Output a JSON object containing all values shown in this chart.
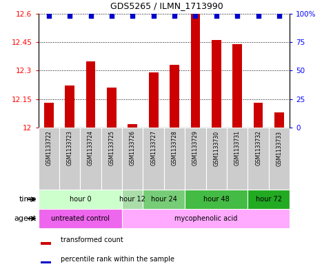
{
  "title": "GDS5265 / ILMN_1713990",
  "samples": [
    "GSM1133722",
    "GSM1133723",
    "GSM1133724",
    "GSM1133725",
    "GSM1133726",
    "GSM1133727",
    "GSM1133728",
    "GSM1133729",
    "GSM1133730",
    "GSM1133731",
    "GSM1133732",
    "GSM1133733"
  ],
  "transformed_counts": [
    12.13,
    12.22,
    12.35,
    12.21,
    12.02,
    12.29,
    12.33,
    12.6,
    12.46,
    12.44,
    12.13,
    12.08
  ],
  "ylim": [
    12.0,
    12.6
  ],
  "y_ticks": [
    12.0,
    12.15,
    12.3,
    12.45,
    12.6
  ],
  "y_tick_labels": [
    "12",
    "12.15",
    "12.3",
    "12.45",
    "12.6"
  ],
  "right_yticks": [
    0,
    25,
    50,
    75,
    100
  ],
  "right_ytick_labels": [
    "0",
    "25",
    "50",
    "75",
    "100%"
  ],
  "bar_color": "#cc0000",
  "dot_color": "#0000cc",
  "sample_bg_color": "#cccccc",
  "time_groups": [
    {
      "label": "hour 0",
      "start": 0,
      "end": 3,
      "color": "#ccffcc"
    },
    {
      "label": "hour 12",
      "start": 4,
      "end": 4,
      "color": "#aaddaa"
    },
    {
      "label": "hour 24",
      "start": 5,
      "end": 6,
      "color": "#77cc77"
    },
    {
      "label": "hour 48",
      "start": 7,
      "end": 9,
      "color": "#44bb44"
    },
    {
      "label": "hour 72",
      "start": 10,
      "end": 11,
      "color": "#22aa22"
    }
  ],
  "agent_groups": [
    {
      "label": "untreated control",
      "start": 0,
      "end": 3,
      "color": "#ee66ee"
    },
    {
      "label": "mycophenolic acid",
      "start": 4,
      "end": 11,
      "color": "#ffaaff"
    }
  ],
  "legend_bar_label": "transformed count",
  "legend_dot_label": "percentile rank within the sample"
}
